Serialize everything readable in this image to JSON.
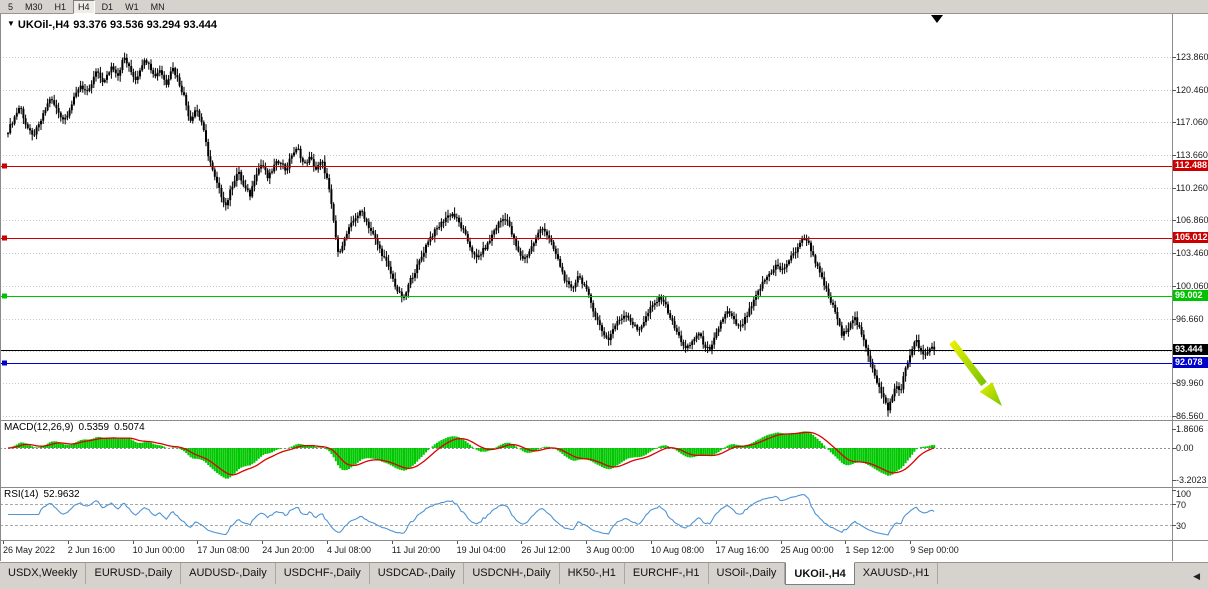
{
  "toolbar": {
    "buttons": [
      "5",
      "M30",
      "H1",
      "H4",
      "D1",
      "W1",
      "MN"
    ],
    "active": "H4"
  },
  "chart_data": {
    "type": "candlestick",
    "symbol_label": "UKOil-,H4",
    "timeframe": "H4",
    "ohlc_line": "93.376 93.536 93.294 93.444",
    "open": "93.376",
    "high": "93.536",
    "low": "93.294",
    "close": "93.444",
    "price_axis_ticks": [
      "123.860",
      "120.460",
      "117.060",
      "113.660",
      "110.260",
      "106.860",
      "103.460",
      "100.060",
      "96.660",
      "89.960",
      "86.560"
    ],
    "hidden_grid_prices": [
      93.26
    ],
    "hlines": [
      {
        "price": 112.488,
        "label": "112.488",
        "color": "#CC0000",
        "handle": true
      },
      {
        "price": 105.012,
        "label": "105.012",
        "color": "#CC0000",
        "handle": true
      },
      {
        "price": 99.002,
        "label": "99.002",
        "color": "#00C300",
        "handle": true
      },
      {
        "price": 93.444,
        "label": "93.444",
        "color": "#000000",
        "handle": false
      },
      {
        "price": 92.078,
        "label": "92.078",
        "color": "#0000CC",
        "handle": true
      }
    ],
    "macd": {
      "name": "MACD(12,26,9)",
      "value_main": "0.5359",
      "value_signal": "0.5074",
      "axis_ticks": [
        "1.8606",
        "0.00",
        "-3.2023"
      ],
      "histogram_color": "#00C800",
      "signal_color": "#DD0000",
      "fast": 12,
      "slow": 26,
      "signal": 9
    },
    "rsi": {
      "name": "RSI(14)",
      "value": "52.9632",
      "axis_ticks": [
        "100",
        "70",
        "30"
      ],
      "levels": [
        70,
        30
      ],
      "line_color": "#4F94D4",
      "period": 14
    },
    "time_axis": [
      "26 May 2022",
      "2 Jun 16:00",
      "10 Jun 00:00",
      "17 Jun 08:00",
      "24 Jun 20:00",
      "4 Jul 08:00",
      "11 Jul 20:00",
      "19 Jul 04:00",
      "26 Jul 12:00",
      "3 Aug 00:00",
      "10 Aug 08:00",
      "17 Aug 16:00",
      "25 Aug 00:00",
      "1 Sep 12:00",
      "9 Sep 00:00"
    ],
    "candle_color": "#000000",
    "trend_arrow": {
      "direction": "down-right",
      "gradient": [
        "#E8F000",
        "#7CC500"
      ]
    },
    "price_path": [
      [
        8,
        116.2
      ],
      [
        14,
        117.5
      ],
      [
        20,
        118.8
      ],
      [
        26,
        116.8
      ],
      [
        32,
        115.6
      ],
      [
        38,
        116.5
      ],
      [
        44,
        118
      ],
      [
        50,
        119.6
      ],
      [
        58,
        118.2
      ],
      [
        64,
        117.3
      ],
      [
        72,
        119
      ],
      [
        80,
        121
      ],
      [
        88,
        120
      ],
      [
        96,
        122.3
      ],
      [
        104,
        121.2
      ],
      [
        112,
        123
      ],
      [
        118,
        122
      ],
      [
        124,
        123.9
      ],
      [
        130,
        122.5
      ],
      [
        136,
        121.5
      ],
      [
        142,
        123.2
      ],
      [
        148,
        123.6
      ],
      [
        154,
        121.8
      ],
      [
        160,
        122.6
      ],
      [
        166,
        121
      ],
      [
        172,
        122.9
      ],
      [
        178,
        121.5
      ],
      [
        184,
        119.8
      ],
      [
        190,
        117.2
      ],
      [
        196,
        118.6
      ],
      [
        202,
        117
      ],
      [
        208,
        113.8
      ],
      [
        214,
        111.5
      ],
      [
        220,
        109.8
      ],
      [
        226,
        108.4
      ],
      [
        232,
        110.5
      ],
      [
        238,
        112
      ],
      [
        244,
        110.3
      ],
      [
        250,
        109.5
      ],
      [
        256,
        111.8
      ],
      [
        262,
        112.8
      ],
      [
        268,
        111.2
      ],
      [
        274,
        112.5
      ],
      [
        280,
        113.2
      ],
      [
        286,
        112
      ],
      [
        292,
        113.8
      ],
      [
        298,
        114.3
      ],
      [
        304,
        112.6
      ],
      [
        310,
        113.4
      ],
      [
        316,
        112.2
      ],
      [
        322,
        113
      ],
      [
        328,
        110.8
      ],
      [
        334,
        106.5
      ],
      [
        338,
        103.4
      ],
      [
        344,
        104.8
      ],
      [
        350,
        106.2
      ],
      [
        356,
        107.3
      ],
      [
        362,
        107.8
      ],
      [
        368,
        106.4
      ],
      [
        374,
        105.2
      ],
      [
        380,
        103.8
      ],
      [
        386,
        102.6
      ],
      [
        392,
        101
      ],
      [
        398,
        99.4
      ],
      [
        404,
        98.7
      ],
      [
        410,
        100.6
      ],
      [
        416,
        101.8
      ],
      [
        422,
        103.2
      ],
      [
        428,
        104.8
      ],
      [
        434,
        105.6
      ],
      [
        440,
        106.4
      ],
      [
        446,
        107.2
      ],
      [
        452,
        107.6
      ],
      [
        458,
        106.8
      ],
      [
        464,
        105.6
      ],
      [
        470,
        104.2
      ],
      [
        476,
        102.8
      ],
      [
        482,
        103.6
      ],
      [
        488,
        104.4
      ],
      [
        494,
        105.8
      ],
      [
        500,
        106.8
      ],
      [
        506,
        107.2
      ],
      [
        512,
        105.4
      ],
      [
        518,
        103.6
      ],
      [
        524,
        102.8
      ],
      [
        530,
        103.8
      ],
      [
        536,
        105
      ],
      [
        542,
        106.3
      ],
      [
        548,
        105.2
      ],
      [
        554,
        103.8
      ],
      [
        560,
        102.2
      ],
      [
        566,
        100.4
      ],
      [
        572,
        99.6
      ],
      [
        578,
        101.2
      ],
      [
        584,
        100.2
      ],
      [
        590,
        98.6
      ],
      [
        596,
        96.8
      ],
      [
        602,
        95.4
      ],
      [
        608,
        94.4
      ],
      [
        614,
        95.8
      ],
      [
        620,
        96.6
      ],
      [
        626,
        97.2
      ],
      [
        632,
        96.2
      ],
      [
        638,
        95.4
      ],
      [
        644,
        96.4
      ],
      [
        650,
        97.6
      ],
      [
        656,
        98.4
      ],
      [
        662,
        98.9
      ],
      [
        668,
        97.4
      ],
      [
        674,
        95.8
      ],
      [
        680,
        94.6
      ],
      [
        686,
        93.4
      ],
      [
        692,
        94.2
      ],
      [
        698,
        95.2
      ],
      [
        704,
        94
      ],
      [
        710,
        93.2
      ],
      [
        716,
        95
      ],
      [
        722,
        96.6
      ],
      [
        728,
        97.4
      ],
      [
        734,
        96.4
      ],
      [
        740,
        95.6
      ],
      [
        746,
        96.8
      ],
      [
        752,
        98
      ],
      [
        758,
        99.4
      ],
      [
        764,
        100.6
      ],
      [
        770,
        101.4
      ],
      [
        776,
        102.2
      ],
      [
        782,
        101.6
      ],
      [
        788,
        102.6
      ],
      [
        794,
        103.4
      ],
      [
        800,
        104.6
      ],
      [
        806,
        105.1
      ],
      [
        812,
        103.6
      ],
      [
        818,
        101.8
      ],
      [
        824,
        100.2
      ],
      [
        830,
        98.6
      ],
      [
        836,
        97.2
      ],
      [
        842,
        94.8
      ],
      [
        848,
        95.8
      ],
      [
        854,
        96.9
      ],
      [
        860,
        95.4
      ],
      [
        866,
        93.6
      ],
      [
        872,
        91.8
      ],
      [
        878,
        89.8
      ],
      [
        884,
        88.2
      ],
      [
        888,
        87.3
      ],
      [
        892,
        88.4
      ],
      [
        896,
        89.8
      ],
      [
        900,
        89
      ],
      [
        904,
        90.8
      ],
      [
        908,
        92.2
      ],
      [
        912,
        93.6
      ],
      [
        916,
        94.4
      ],
      [
        920,
        93.4
      ],
      [
        924,
        92.6
      ],
      [
        928,
        93.2
      ],
      [
        932,
        93.8
      ],
      [
        936,
        93.44
      ]
    ]
  },
  "tabs": {
    "items": [
      "USDX,Weekly",
      "EURUSD-,Daily",
      "AUDUSD-,Daily",
      "USDCHF-,Daily",
      "USDCAD-,Daily",
      "USDCNH-,Daily",
      "HK50-,H1",
      "EURCHF-,H1",
      "USOil-,Daily",
      "UKOil-,H4",
      "XAUUSD-,H1"
    ],
    "active": "UKOil-,H4",
    "scroll_icon": "◀"
  }
}
